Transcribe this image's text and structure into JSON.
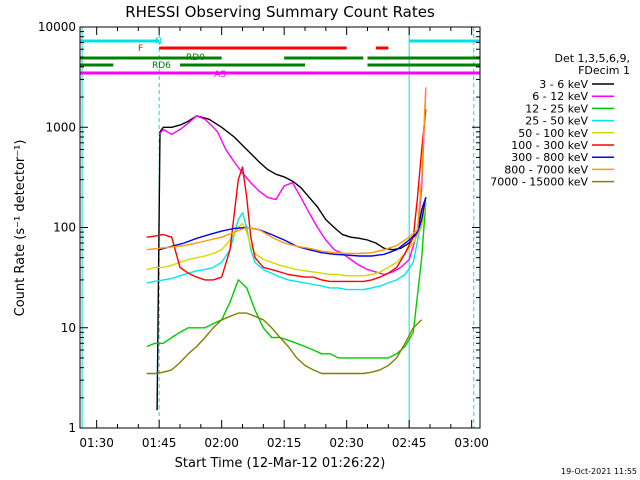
{
  "chart_data": {
    "type": "line",
    "title": "RHESSI Observing Summary Count Rates",
    "xlabel": "Start Time (12-Mar-12 01:26:22)",
    "ylabel": "Count Rate (s⁻¹ detector⁻¹)",
    "yscale": "log",
    "ylim": [
      1,
      10000
    ],
    "xlim_minutes": [
      86,
      182
    ],
    "x_ticks": [
      {
        "label": "01:30",
        "min": 90
      },
      {
        "label": "01:45",
        "min": 105
      },
      {
        "label": "02:00",
        "min": 120
      },
      {
        "label": "02:15",
        "min": 135
      },
      {
        "label": "02:30",
        "min": 150
      },
      {
        "label": "02:45",
        "min": 165
      },
      {
        "label": "03:00",
        "min": 180
      }
    ],
    "y_ticks": [
      {
        "label": "1",
        "v": 1
      },
      {
        "label": "10",
        "v": 10
      },
      {
        "label": "100",
        "v": 100
      },
      {
        "label": "1000",
        "v": 1000
      },
      {
        "label": "10000",
        "v": 10000
      }
    ],
    "legend": {
      "title_lines": [
        "Det 1,3,5,6,9,",
        "FDecim 1"
      ],
      "placement": "right"
    },
    "series": [
      {
        "name": "3 - 6 keV",
        "color": "#000000",
        "x": [
          104.5,
          105.2,
          106,
          108,
          110,
          112,
          114,
          117,
          120,
          123,
          126,
          129,
          131,
          133,
          135,
          137,
          139,
          141,
          143,
          145,
          147,
          149,
          151,
          153,
          155,
          157,
          159,
          161,
          163,
          165,
          167,
          168,
          169
        ],
        "y": [
          1.5,
          900,
          1000,
          1000,
          1050,
          1150,
          1300,
          1200,
          1000,
          800,
          600,
          450,
          380,
          340,
          320,
          290,
          250,
          200,
          160,
          120,
          100,
          85,
          80,
          78,
          75,
          70,
          62,
          60,
          62,
          70,
          90,
          150,
          200
        ]
      },
      {
        "name": "6 - 12 keV",
        "color": "#ff00ff",
        "x": [
          105,
          106,
          108,
          110,
          112,
          114,
          116,
          118,
          119,
          121,
          123,
          125,
          127,
          129,
          131,
          133,
          135,
          137,
          139,
          141,
          143,
          145,
          147,
          149,
          151,
          153,
          155,
          157,
          159,
          161,
          163,
          165,
          167,
          168,
          169
        ],
        "y": [
          850,
          950,
          850,
          950,
          1100,
          1300,
          1200,
          1000,
          900,
          600,
          450,
          350,
          280,
          230,
          200,
          190,
          260,
          280,
          200,
          140,
          100,
          75,
          60,
          55,
          48,
          42,
          38,
          36,
          34,
          36,
          40,
          48,
          90,
          250,
          2400
        ]
      },
      {
        "name": "12 - 25 keV",
        "color": "#00cc00",
        "x": [
          102,
          104,
          106,
          108,
          110,
          112,
          114,
          116,
          118,
          120,
          122,
          124,
          126,
          128,
          130,
          132,
          134,
          136,
          138,
          140,
          142,
          144,
          146,
          148,
          150,
          152,
          154,
          156,
          158,
          160,
          162,
          164,
          166,
          168,
          169
        ],
        "y": [
          6.5,
          7,
          7,
          8,
          9,
          10,
          10,
          10,
          11,
          12,
          18,
          30,
          25,
          15,
          10,
          8,
          8,
          7.5,
          7,
          6.5,
          6,
          5.5,
          5.5,
          5,
          5,
          5,
          5,
          5,
          5,
          5,
          5.5,
          6.5,
          9,
          50,
          180
        ]
      },
      {
        "name": "25 - 50 keV",
        "color": "#00e8e8",
        "x": [
          102,
          104,
          106,
          108,
          110,
          112,
          114,
          116,
          118,
          120,
          122,
          124,
          125,
          126,
          127,
          128,
          130,
          132,
          134,
          136,
          138,
          140,
          142,
          144,
          146,
          148,
          150,
          152,
          154,
          156,
          158,
          160,
          162,
          164,
          166,
          168,
          169
        ],
        "y": [
          28,
          29,
          30,
          31,
          33,
          35,
          37,
          38,
          40,
          45,
          60,
          120,
          140,
          100,
          60,
          45,
          38,
          35,
          32,
          30,
          29,
          28,
          27,
          26,
          25,
          25,
          24,
          24,
          24,
          25,
          26,
          28,
          30,
          34,
          45,
          120,
          200
        ]
      },
      {
        "name": "50 - 100 keV",
        "color": "#d8d800",
        "x": [
          102,
          104,
          106,
          108,
          110,
          112,
          114,
          116,
          118,
          120,
          122,
          124,
          125,
          126,
          127,
          128,
          130,
          132,
          134,
          136,
          138,
          140,
          142,
          144,
          146,
          148,
          150,
          152,
          154,
          156,
          158,
          160,
          162,
          164,
          166,
          168,
          169
        ],
        "y": [
          38,
          40,
          40,
          42,
          45,
          48,
          50,
          52,
          55,
          60,
          75,
          100,
          110,
          90,
          65,
          55,
          48,
          45,
          42,
          40,
          38,
          37,
          36,
          35,
          34,
          34,
          33,
          33,
          33,
          34,
          36,
          40,
          45,
          55,
          70,
          100,
          180
        ]
      },
      {
        "name": "100 - 300 keV",
        "color": "#ff0000",
        "x": [
          102,
          104,
          106,
          108,
          110,
          112,
          114,
          116,
          118,
          120,
          122,
          124,
          125,
          126,
          127,
          128,
          130,
          132,
          134,
          136,
          138,
          140,
          142,
          144,
          146,
          148,
          150,
          152,
          154,
          156,
          158,
          160,
          162,
          164,
          166,
          167,
          168,
          169
        ],
        "y": [
          80,
          82,
          85,
          80,
          40,
          35,
          32,
          30,
          30,
          32,
          60,
          300,
          400,
          200,
          80,
          50,
          40,
          38,
          36,
          34,
          33,
          32,
          32,
          30,
          29,
          29,
          29,
          29,
          29,
          30,
          32,
          35,
          40,
          55,
          80,
          200,
          600,
          1500
        ]
      },
      {
        "name": "300 - 800 keV",
        "color": "#0000ff",
        "x": [
          105,
          108,
          111,
          114,
          117,
          120,
          123,
          126,
          129,
          132,
          135,
          138,
          141,
          144,
          147,
          150,
          153,
          156,
          159,
          162,
          165,
          167,
          168,
          169
        ],
        "y": [
          60,
          65,
          70,
          78,
          85,
          92,
          98,
          100,
          95,
          85,
          75,
          65,
          60,
          56,
          54,
          53,
          52,
          52,
          54,
          60,
          75,
          90,
          120,
          200
        ]
      },
      {
        "name": "800 - 7000 keV",
        "color": "#ff9900",
        "x": [
          102,
          105,
          108,
          111,
          114,
          117,
          120,
          123,
          126,
          129,
          132,
          135,
          138,
          141,
          144,
          147,
          150,
          153,
          156,
          159,
          162,
          165,
          167,
          168,
          169
        ],
        "y": [
          60,
          62,
          64,
          66,
          70,
          75,
          80,
          90,
          100,
          95,
          80,
          70,
          65,
          62,
          58,
          56,
          55,
          55,
          56,
          60,
          66,
          80,
          95,
          300,
          2500
        ]
      },
      {
        "name": "7000 - 15000 keV",
        "color": "#808000",
        "x": [
          102,
          104,
          106,
          108,
          110,
          112,
          114,
          116,
          118,
          120,
          122,
          124,
          126,
          128,
          130,
          132,
          134,
          136,
          138,
          140,
          142,
          144,
          146,
          148,
          150,
          152,
          154,
          156,
          158,
          160,
          162,
          164,
          166,
          168
        ],
        "y": [
          3.5,
          3.5,
          3.6,
          3.8,
          4.5,
          5.5,
          6.5,
          8,
          10,
          12,
          13,
          14,
          14,
          13,
          12,
          10,
          8,
          6.5,
          5,
          4.2,
          3.8,
          3.5,
          3.5,
          3.5,
          3.5,
          3.5,
          3.5,
          3.6,
          3.8,
          4.2,
          5,
          7,
          10,
          12
        ]
      }
    ],
    "bars": [
      {
        "label": "N",
        "color": "#00e0e0",
        "segments": [
          [
            86,
            105
          ],
          [
            165,
            182
          ]
        ]
      },
      {
        "label": "F",
        "color": "#ff0000",
        "segments": [
          [
            105,
            150
          ],
          [
            157,
            160
          ]
        ]
      },
      {
        "label": "RD0",
        "color": "#008000",
        "segments": [
          [
            86,
            120
          ],
          [
            135,
            154
          ],
          [
            155,
            182
          ]
        ]
      },
      {
        "label": "RD6",
        "color": "#008000",
        "segments": [
          [
            86,
            94
          ],
          [
            110,
            140
          ],
          [
            155,
            182
          ]
        ]
      },
      {
        "label": "AS",
        "color": "#ff00ff",
        "segments": [
          [
            86,
            182
          ]
        ]
      }
    ],
    "vertical_markers": [
      {
        "min": 86.5,
        "color": "#00e0e0",
        "style": "solid"
      },
      {
        "min": 105,
        "color": "#00e0e0",
        "style": "dashed"
      },
      {
        "min": 165,
        "color": "#00e0e0",
        "style": "solid"
      },
      {
        "min": 180.5,
        "color": "#00e0e0",
        "style": "dashed"
      }
    ],
    "footer_date": "19-Oct-2021 11:55"
  }
}
